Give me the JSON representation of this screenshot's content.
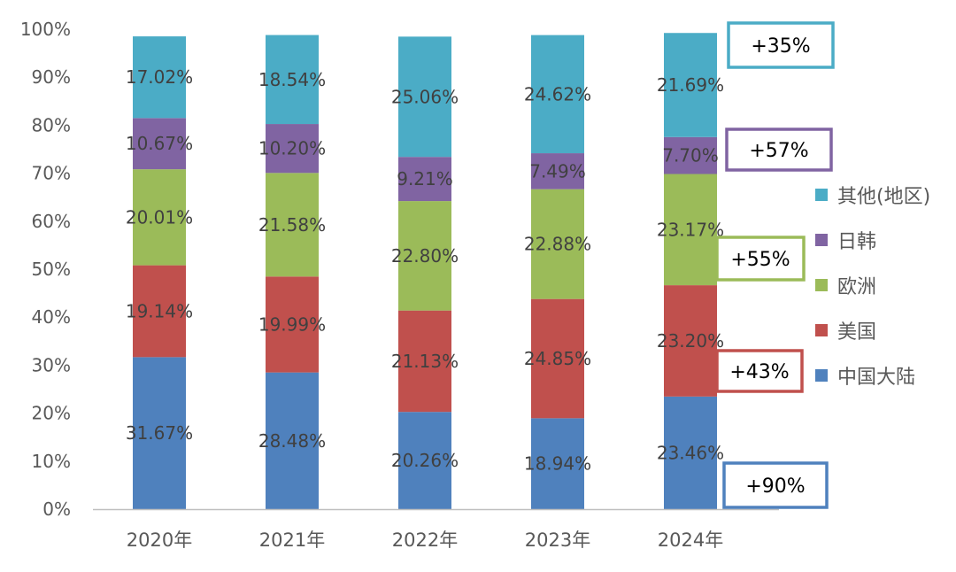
{
  "chart_data": {
    "type": "bar",
    "stacked": true,
    "percent": true,
    "categories": [
      "2020年",
      "2021年",
      "2022年",
      "2023年",
      "2024年"
    ],
    "ylim": [
      0,
      100
    ],
    "yticks": [
      "0%",
      "10%",
      "20%",
      "30%",
      "40%",
      "50%",
      "60%",
      "70%",
      "80%",
      "90%",
      "100%"
    ],
    "grid": false,
    "legend_position": "right",
    "series": [
      {
        "name": "中国大陆",
        "color": "#4f81bd",
        "values": [
          31.67,
          28.48,
          20.26,
          18.94,
          23.46
        ],
        "labels": [
          "31.67%",
          "28.48%",
          "20.26%",
          "18.94%",
          "23.46%"
        ]
      },
      {
        "name": "美国",
        "color": "#c0504d",
        "values": [
          19.14,
          19.99,
          21.13,
          24.85,
          23.2
        ],
        "labels": [
          "19.14%",
          "19.99%",
          "21.13%",
          "24.85%",
          "23.20%"
        ]
      },
      {
        "name": "欧洲",
        "color": "#9bbb59",
        "values": [
          20.01,
          21.58,
          22.8,
          22.88,
          23.17
        ],
        "labels": [
          "20.01%",
          "21.58%",
          "22.80%",
          "22.88%",
          "23.17%"
        ]
      },
      {
        "name": "日韩",
        "color": "#8064a2",
        "values": [
          10.67,
          10.2,
          9.21,
          7.49,
          7.7
        ],
        "labels": [
          "10.67%",
          "10.20%",
          "9.21%",
          "7.49%",
          "7.70%"
        ]
      },
      {
        "name": "其他(地区)",
        "color": "#4bacc6",
        "values": [
          17.02,
          18.54,
          25.06,
          24.62,
          21.69
        ],
        "labels": [
          "17.02%",
          "18.54%",
          "25.06%",
          "24.62%",
          "21.69%"
        ]
      }
    ],
    "annotations": [
      {
        "series": "其他(地区)",
        "text": "+35%",
        "color": "#4bacc6"
      },
      {
        "series": "日韩",
        "text": "+57%",
        "color": "#8064a2"
      },
      {
        "series": "欧洲",
        "text": "+55%",
        "color": "#9bbb59"
      },
      {
        "series": "美国",
        "text": "+43%",
        "color": "#c0504d"
      },
      {
        "series": "中国大陆",
        "text": "+90%",
        "color": "#4f81bd"
      }
    ]
  }
}
